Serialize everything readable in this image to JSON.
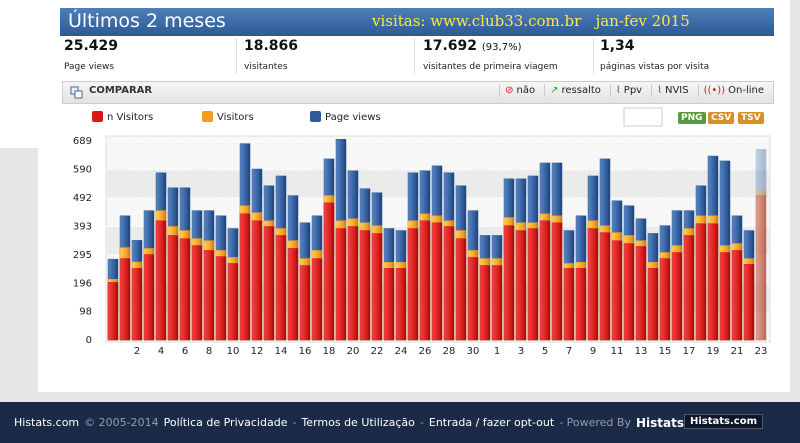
{
  "header": {
    "title": "Últimos 2 meses",
    "subtitle": "visitas: www.club33.com.br   jan-fev 2015"
  },
  "stats": [
    {
      "value": "25.429",
      "label": "Page views"
    },
    {
      "value": "18.866",
      "label": "visitantes"
    },
    {
      "value": "17.692",
      "extra": "(93,7%)",
      "label": "visitantes de primeira viagem"
    },
    {
      "value": "1,34",
      "label": "páginas vistas por visita"
    }
  ],
  "toolbar": {
    "title": "COMPARAR",
    "buttons": [
      "não",
      "ressalto",
      "Ppv",
      "NVIS",
      "On-line"
    ]
  },
  "exports": [
    "PNG",
    "CSV",
    "TSV"
  ],
  "chart_data": {
    "type": "bar",
    "categories": [
      null,
      "2",
      null,
      "4",
      null,
      "6",
      null,
      "8",
      null,
      "10",
      null,
      "12",
      null,
      "14",
      null,
      "16",
      null,
      "18",
      null,
      "20",
      null,
      "22",
      null,
      "24",
      null,
      "26",
      null,
      "28",
      null,
      "30",
      null,
      "1",
      null,
      "3",
      null,
      "5",
      null,
      "7",
      null,
      "9",
      null,
      "11",
      null,
      "13",
      null,
      "15",
      null,
      "17",
      null,
      "19",
      null,
      "21",
      null,
      "23",
      null
    ],
    "series": [
      {
        "name": "Page views",
        "color": "#2f5b9a",
        "values": [
          280,
          430,
          345,
          448,
          579,
          527,
          527,
          448,
          448,
          430,
          386,
          680,
          592,
          534,
          568,
          500,
          406,
          430,
          627,
          695,
          586,
          524,
          510,
          386,
          379,
          579,
          586,
          603,
          579,
          534,
          448,
          362,
          362,
          558,
          558,
          568,
          613,
          613,
          379,
          430,
          568,
          627,
          482,
          465,
          420,
          369,
          396,
          448,
          448,
          534,
          637,
          620,
          430,
          379,
          660
        ]
      },
      {
        "name": "Visitors",
        "color": "#f0a020",
        "values": [
          210,
          320,
          270,
          317,
          448,
          393,
          379,
          351,
          344,
          310,
          286,
          465,
          441,
          413,
          386,
          344,
          282,
          310,
          500,
          413,
          420,
          406,
          396,
          269,
          269,
          413,
          437,
          430,
          413,
          379,
          310,
          282,
          282,
          424,
          406,
          406,
          437,
          430,
          265,
          269,
          413,
          396,
          372,
          362,
          344,
          269,
          303,
          327,
          386,
          430,
          430,
          327,
          334,
          282,
          520
        ]
      },
      {
        "name": "n Visitors",
        "color": "#d81818",
        "values": [
          200,
          282,
          248,
          296,
          413,
          362,
          351,
          327,
          310,
          289,
          265,
          437,
          413,
          393,
          362,
          317,
          258,
          282,
          475,
          386,
          393,
          379,
          369,
          248,
          248,
          386,
          413,
          406,
          393,
          351,
          286,
          258,
          258,
          396,
          379,
          386,
          413,
          406,
          248,
          248,
          386,
          372,
          344,
          334,
          324,
          248,
          282,
          303,
          362,
          403,
          403,
          303,
          310,
          262,
          500
        ]
      }
    ],
    "ylim": [
      0,
      689
    ],
    "yticks": [
      0,
      98,
      196,
      295,
      393,
      492,
      590,
      689
    ],
    "grid": true
  },
  "footer": {
    "items": [
      "Histats.com",
      "© 2005-2014",
      "Política de Privacidade",
      "-",
      "Termos de Utilização",
      "-",
      "Entrada / fazer opt-out",
      "- Powered By",
      "Histats"
    ],
    "logo": "Histats.com"
  }
}
